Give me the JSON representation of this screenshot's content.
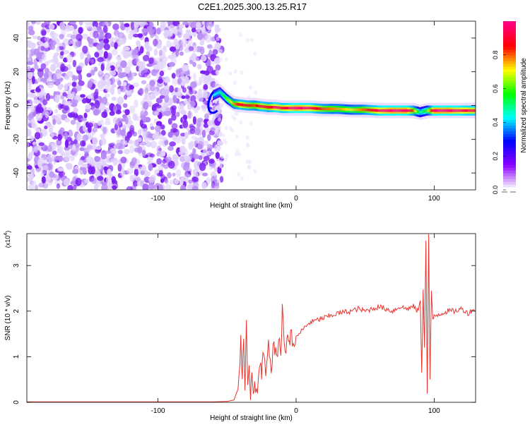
{
  "title": "C2E1.2025.300.13.25.R17",
  "chart_data": [
    {
      "type": "heatmap",
      "xlabel": "Height of straight line (km)",
      "ylabel": "Frequency (Hz)",
      "xlim": [
        -195,
        130
      ],
      "ylim": [
        -50,
        50
      ],
      "xticks": [
        -100,
        0,
        100
      ],
      "yticks": [
        -40,
        -20,
        0,
        20,
        40
      ],
      "colorbar": {
        "label": "Normalized spectral amplitude",
        "range": [
          0,
          1
        ],
        "ticks": [
          "0.0",
          "0.2",
          "0.4",
          "0.6",
          "0.8"
        ],
        "colormap": [
          "#ffffff",
          "#8a00ff",
          "#0000ff",
          "#00ffff",
          "#00ff00",
          "#ffff00",
          "#ff0000",
          "#ff0080"
        ]
      },
      "noise_region": {
        "x_range": [
          -195,
          -58
        ],
        "y_range": [
          -50,
          50
        ]
      },
      "ridge": {
        "x": [
          -60,
          -55,
          -50,
          -45,
          -40,
          -35,
          -30,
          -25,
          -20,
          -15,
          -10,
          -5,
          0,
          10,
          20,
          30,
          40,
          50,
          60,
          70,
          80,
          85,
          90,
          95,
          100,
          110,
          120,
          130
        ],
        "y": [
          6,
          8,
          4,
          1,
          0.5,
          0,
          0,
          -0.5,
          -1,
          -1,
          -1.5,
          -1.5,
          -1.5,
          -1.5,
          -2,
          -2,
          -2.5,
          -2.5,
          -3,
          -3,
          -3,
          -3,
          -4,
          -3,
          -3,
          -3,
          -3,
          -3
        ],
        "amplitude": [
          0.3,
          0.35,
          0.5,
          0.65,
          0.8,
          0.75,
          0.7,
          0.8,
          0.75,
          0.85,
          0.8,
          0.85,
          0.9,
          0.85,
          0.7,
          0.65,
          0.6,
          0.7,
          0.85,
          0.9,
          0.9,
          0.7,
          0.35,
          0.5,
          0.9,
          0.9,
          0.85,
          0.8
        ]
      }
    },
    {
      "type": "line",
      "xlabel": "Height of straight line (km)",
      "ylabel": "SNR (10 * v/v)",
      "scale_label": "(x10",
      "scale_exp": "4",
      "scale_close": ")",
      "xlim": [
        -195,
        130
      ],
      "ylim": [
        0,
        3.7
      ],
      "xticks": [
        -100,
        0,
        100
      ],
      "yticks": [
        0,
        1,
        2,
        3
      ],
      "color": "#e8342f",
      "series": [
        {
          "x": [
            -195,
            -150,
            -100,
            -60,
            -50,
            -45,
            -42,
            -40,
            -39,
            -38,
            -37,
            -36,
            -35,
            -34,
            -33,
            -32,
            -31,
            -30,
            -28,
            -26,
            -25,
            -24,
            -22,
            -20,
            -18,
            -16,
            -14,
            -12,
            -11,
            -10,
            -8,
            -6,
            -5,
            -4,
            -2,
            0,
            2,
            5,
            8,
            10,
            15,
            20,
            25,
            30,
            35,
            40,
            45,
            50,
            55,
            60,
            65,
            70,
            75,
            80,
            85,
            88,
            90,
            91,
            92,
            93,
            94,
            95,
            96,
            97,
            98,
            99,
            100,
            105,
            110,
            115,
            120,
            125,
            128,
            130
          ],
          "y": [
            0.01,
            0.01,
            0.01,
            0.01,
            0.02,
            0.05,
            0.3,
            1.3,
            0.6,
            1.5,
            0.4,
            1.7,
            0.5,
            0.9,
            0.2,
            0.5,
            0.15,
            0.4,
            0.2,
            0.9,
            0.5,
            1.1,
            0.6,
            1.2,
            0.8,
            1.3,
            0.9,
            1.5,
            1.0,
            2.0,
            1.1,
            1.5,
            1.2,
            1.6,
            1.3,
            1.4,
            1.5,
            1.6,
            1.7,
            1.75,
            1.8,
            1.85,
            1.9,
            1.95,
            1.98,
            2.0,
            2.05,
            2.0,
            2.05,
            2.1,
            2.05,
            2.0,
            2.1,
            2.05,
            2.1,
            2.0,
            2.2,
            0.6,
            2.5,
            1.2,
            3.6,
            0.2,
            3.7,
            0.5,
            2.4,
            1.8,
            1.9,
            1.95,
            2.0,
            2.0,
            2.05,
            1.95,
            2.05,
            2.0
          ]
        }
      ]
    }
  ]
}
